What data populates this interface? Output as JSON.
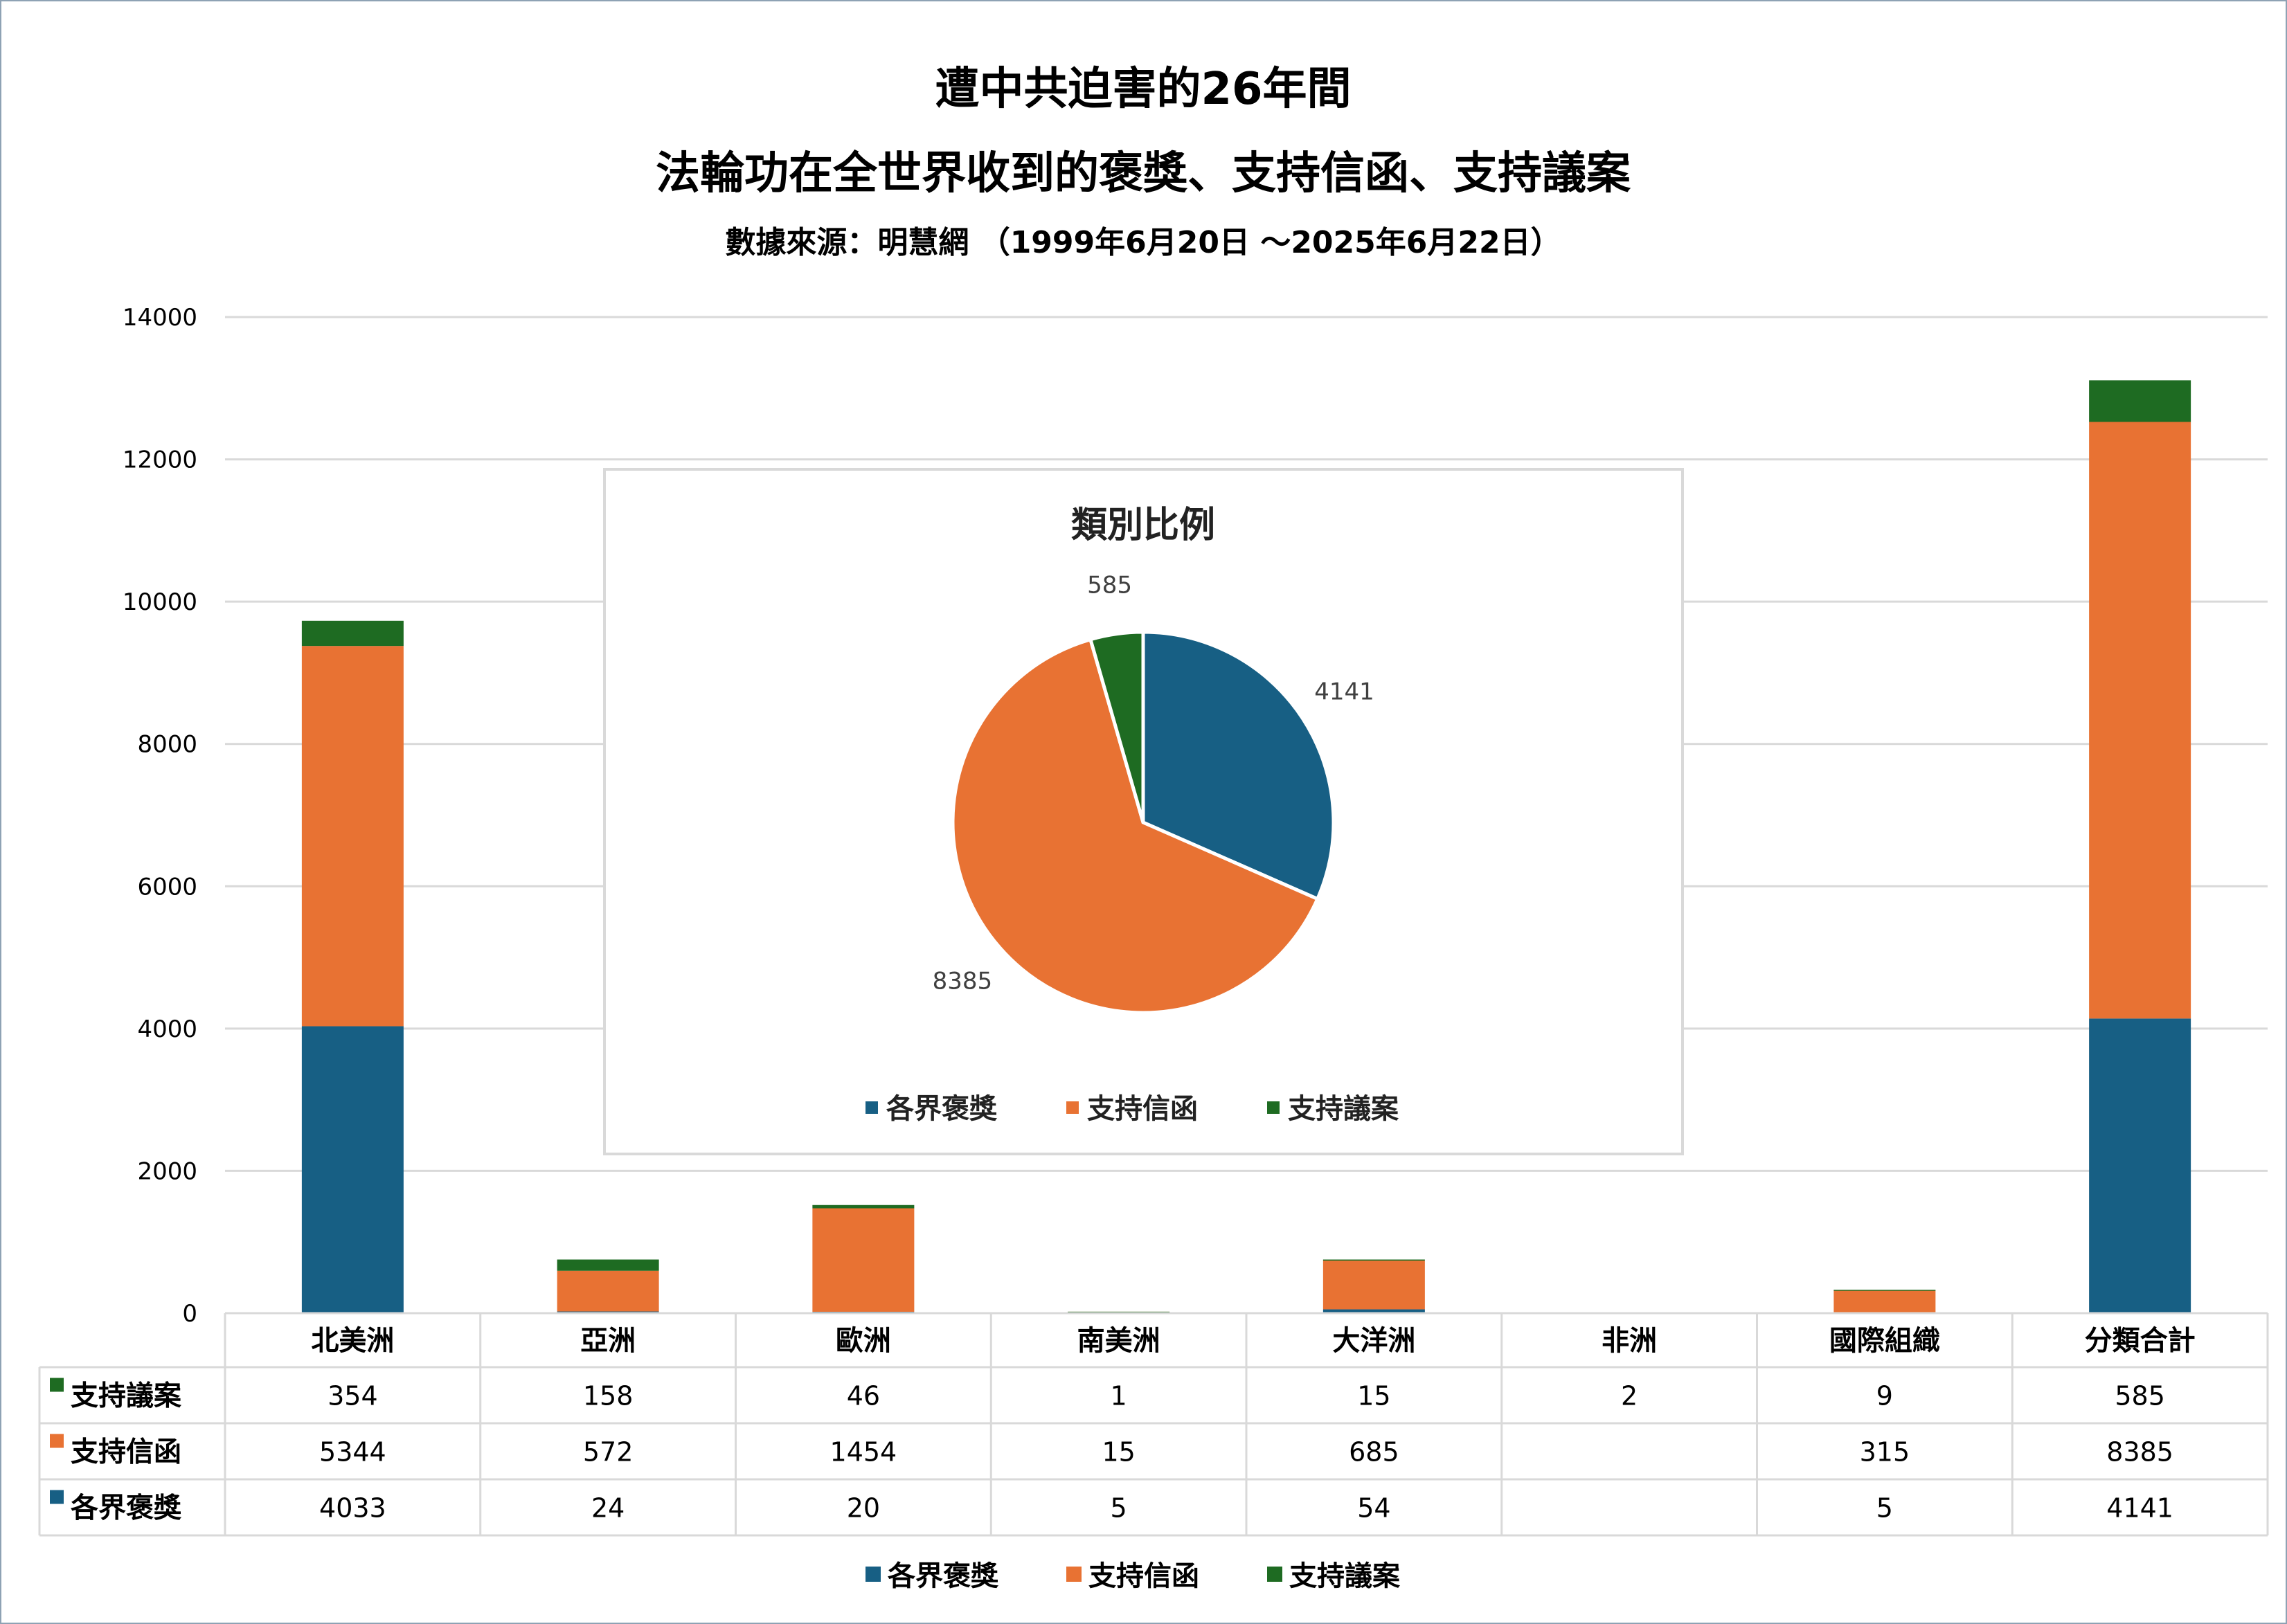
{
  "chart_data": [
    {
      "type": "bar",
      "stacked": true,
      "title": "遭中共迫害的26年間",
      "subtitle": "法輪功在全世界收到的褒獎、支持信函、支持議案",
      "source": "數據來源：明慧網 （1999年6月20日 ～2025年6月22日）",
      "categories": [
        "北美洲",
        "亞洲",
        "歐洲",
        "南美洲",
        "大洋洲",
        "非洲",
        "國際組織",
        "分類合計"
      ],
      "ylim": [
        0,
        14000
      ],
      "yticks": [
        "0",
        "2000",
        "4000",
        "6000",
        "8000",
        "10000",
        "12000",
        "14000"
      ],
      "grid": true,
      "legend_position": "bottom",
      "series": [
        {
          "name": "各界褒獎",
          "color": "#175f84",
          "values": [
            4033,
            24,
            20,
            5,
            54,
            null,
            5,
            4141
          ]
        },
        {
          "name": "支持信函",
          "color": "#e87233",
          "values": [
            5344,
            572,
            1454,
            15,
            685,
            null,
            315,
            8385
          ]
        },
        {
          "name": "支持議案",
          "color": "#1e6b22",
          "values": [
            354,
            158,
            46,
            1,
            15,
            2,
            9,
            585
          ]
        }
      ],
      "data_table": {
        "rows": [
          {
            "name": "支持議案",
            "color": "#1e6b22",
            "cells": [
              "354",
              "158",
              "46",
              "1",
              "15",
              "2",
              "9",
              "585"
            ]
          },
          {
            "name": "支持信函",
            "color": "#e87233",
            "cells": [
              "5344",
              "572",
              "1454",
              "15",
              "685",
              "",
              "315",
              "8385"
            ]
          },
          {
            "name": "各界褒獎",
            "color": "#175f84",
            "cells": [
              "4033",
              "24",
              "20",
              "5",
              "54",
              "",
              "5",
              "4141"
            ]
          }
        ]
      }
    },
    {
      "type": "pie",
      "title": "類別比例",
      "legend_position": "bottom",
      "slices": [
        {
          "name": "各界褒獎",
          "value": 4141,
          "color": "#175f84"
        },
        {
          "name": "支持信函",
          "value": 8385,
          "color": "#e87233"
        },
        {
          "name": "支持議案",
          "value": 585,
          "color": "#1e6b22"
        }
      ]
    }
  ]
}
